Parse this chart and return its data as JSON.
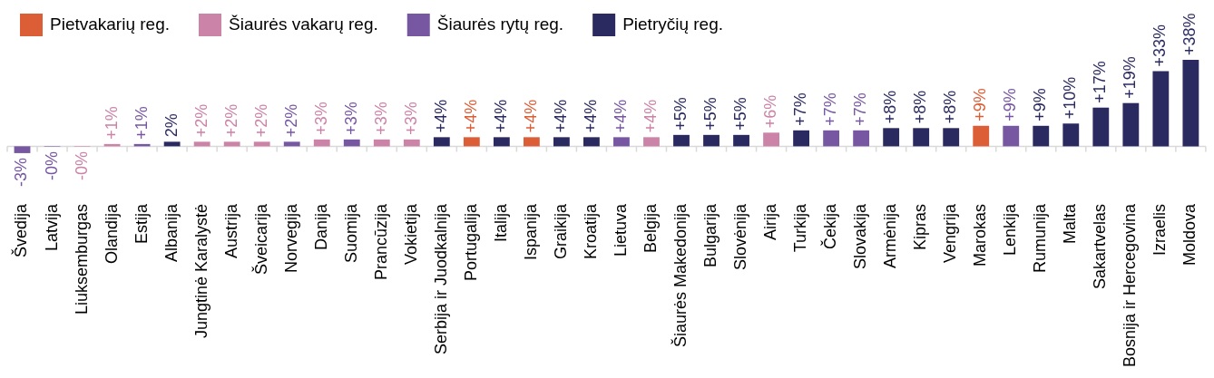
{
  "chart_data": {
    "type": "bar",
    "categories": [
      "Švedija",
      "Latvija",
      "Liuksemburgas",
      "Olandija",
      "Estija",
      "Albanija",
      "Jungtinė Karalystė",
      "Austrija",
      "Šveicarija",
      "Norvegija",
      "Danija",
      "Suomija",
      "Prancūzija",
      "Vokietija",
      "Serbija ir Juodkalnija",
      "Portugalija",
      "Italija",
      "Ispanija",
      "Graikija",
      "Kroatija",
      "Lietuva",
      "Belgija",
      "Šiaurės Makedonija",
      "Bulgarija",
      "Slovėnija",
      "Airija",
      "Turkija",
      "Čekija",
      "Slovakija",
      "Armėnija",
      "Kipras",
      "Vengrija",
      "Marokas",
      "Lenkija",
      "Rumunija",
      "Malta",
      "Sakartvelas",
      "Bosnija ir Hercegovina",
      "Izraelis",
      "Moldova"
    ],
    "series": [
      {
        "name": "Pietvakarių reg.",
        "color": "#dc5e37",
        "values": [
          null,
          null,
          null,
          null,
          null,
          null,
          null,
          null,
          null,
          null,
          null,
          null,
          null,
          null,
          null,
          4,
          null,
          4,
          null,
          null,
          null,
          null,
          null,
          null,
          null,
          null,
          null,
          null,
          null,
          null,
          null,
          null,
          9,
          null,
          null,
          null,
          null,
          null,
          null,
          null
        ],
        "value_labels": [
          null,
          null,
          null,
          null,
          null,
          null,
          null,
          null,
          null,
          null,
          null,
          null,
          null,
          null,
          null,
          "+4%",
          null,
          "+4%",
          null,
          null,
          null,
          null,
          null,
          null,
          null,
          null,
          null,
          null,
          null,
          null,
          null,
          null,
          "+9%",
          null,
          null,
          null,
          null,
          null,
          null,
          null
        ]
      },
      {
        "name": "Šiaurės vakarų reg.",
        "color": "#cc83a8",
        "values": [
          null,
          null,
          -0.2,
          1,
          null,
          null,
          2,
          2,
          2,
          null,
          3,
          null,
          3,
          3,
          null,
          null,
          null,
          null,
          null,
          null,
          null,
          4,
          null,
          null,
          null,
          6,
          null,
          null,
          null,
          null,
          null,
          null,
          null,
          null,
          null,
          null,
          null,
          null,
          null,
          null
        ],
        "value_labels": [
          null,
          null,
          "-0%",
          "+1%",
          null,
          null,
          "+2%",
          "+2%",
          "+2%",
          null,
          "+3%",
          null,
          "+3%",
          "+3%",
          null,
          null,
          null,
          null,
          null,
          null,
          null,
          "+4%",
          null,
          null,
          null,
          "+6%",
          null,
          null,
          null,
          null,
          null,
          null,
          null,
          null,
          null,
          null,
          null,
          null,
          null,
          null
        ]
      },
      {
        "name": "Šiaurės rytų reg.",
        "color": "#7757a2",
        "values": [
          -3,
          -0.2,
          null,
          null,
          1,
          null,
          null,
          null,
          null,
          2,
          null,
          3,
          null,
          null,
          null,
          null,
          null,
          null,
          null,
          null,
          4,
          null,
          null,
          null,
          null,
          null,
          null,
          7,
          7,
          null,
          null,
          null,
          null,
          9,
          null,
          null,
          null,
          null,
          null,
          null
        ],
        "value_labels": [
          "-3%",
          "-0%",
          null,
          null,
          "+1%",
          null,
          null,
          null,
          null,
          "+2%",
          null,
          "+3%",
          null,
          null,
          null,
          null,
          null,
          null,
          null,
          null,
          "+4%",
          null,
          null,
          null,
          null,
          null,
          null,
          "+7%",
          "+7%",
          null,
          null,
          null,
          null,
          "+9%",
          null,
          null,
          null,
          null,
          null,
          null
        ]
      },
      {
        "name": "Pietryčių reg.",
        "color": "#2b2a60",
        "values": [
          null,
          null,
          null,
          null,
          null,
          2,
          null,
          null,
          null,
          null,
          null,
          null,
          null,
          null,
          4,
          null,
          4,
          null,
          4,
          4,
          null,
          null,
          5,
          5,
          5,
          null,
          7,
          null,
          null,
          8,
          8,
          8,
          null,
          null,
          9,
          10,
          17,
          19,
          33,
          38
        ],
        "value_labels": [
          null,
          null,
          null,
          null,
          null,
          "2%",
          null,
          null,
          null,
          null,
          null,
          null,
          null,
          null,
          "+4%",
          null,
          "+4%",
          null,
          "+4%",
          "+4%",
          null,
          null,
          "+5%",
          "+5%",
          "+5%",
          null,
          "+7%",
          null,
          null,
          "+8%",
          "+8%",
          "+8%",
          null,
          null,
          "+9%",
          "+10%",
          "+17%",
          "+19%",
          "+33%",
          "+38%"
        ]
      }
    ],
    "legend": "top left"
  }
}
